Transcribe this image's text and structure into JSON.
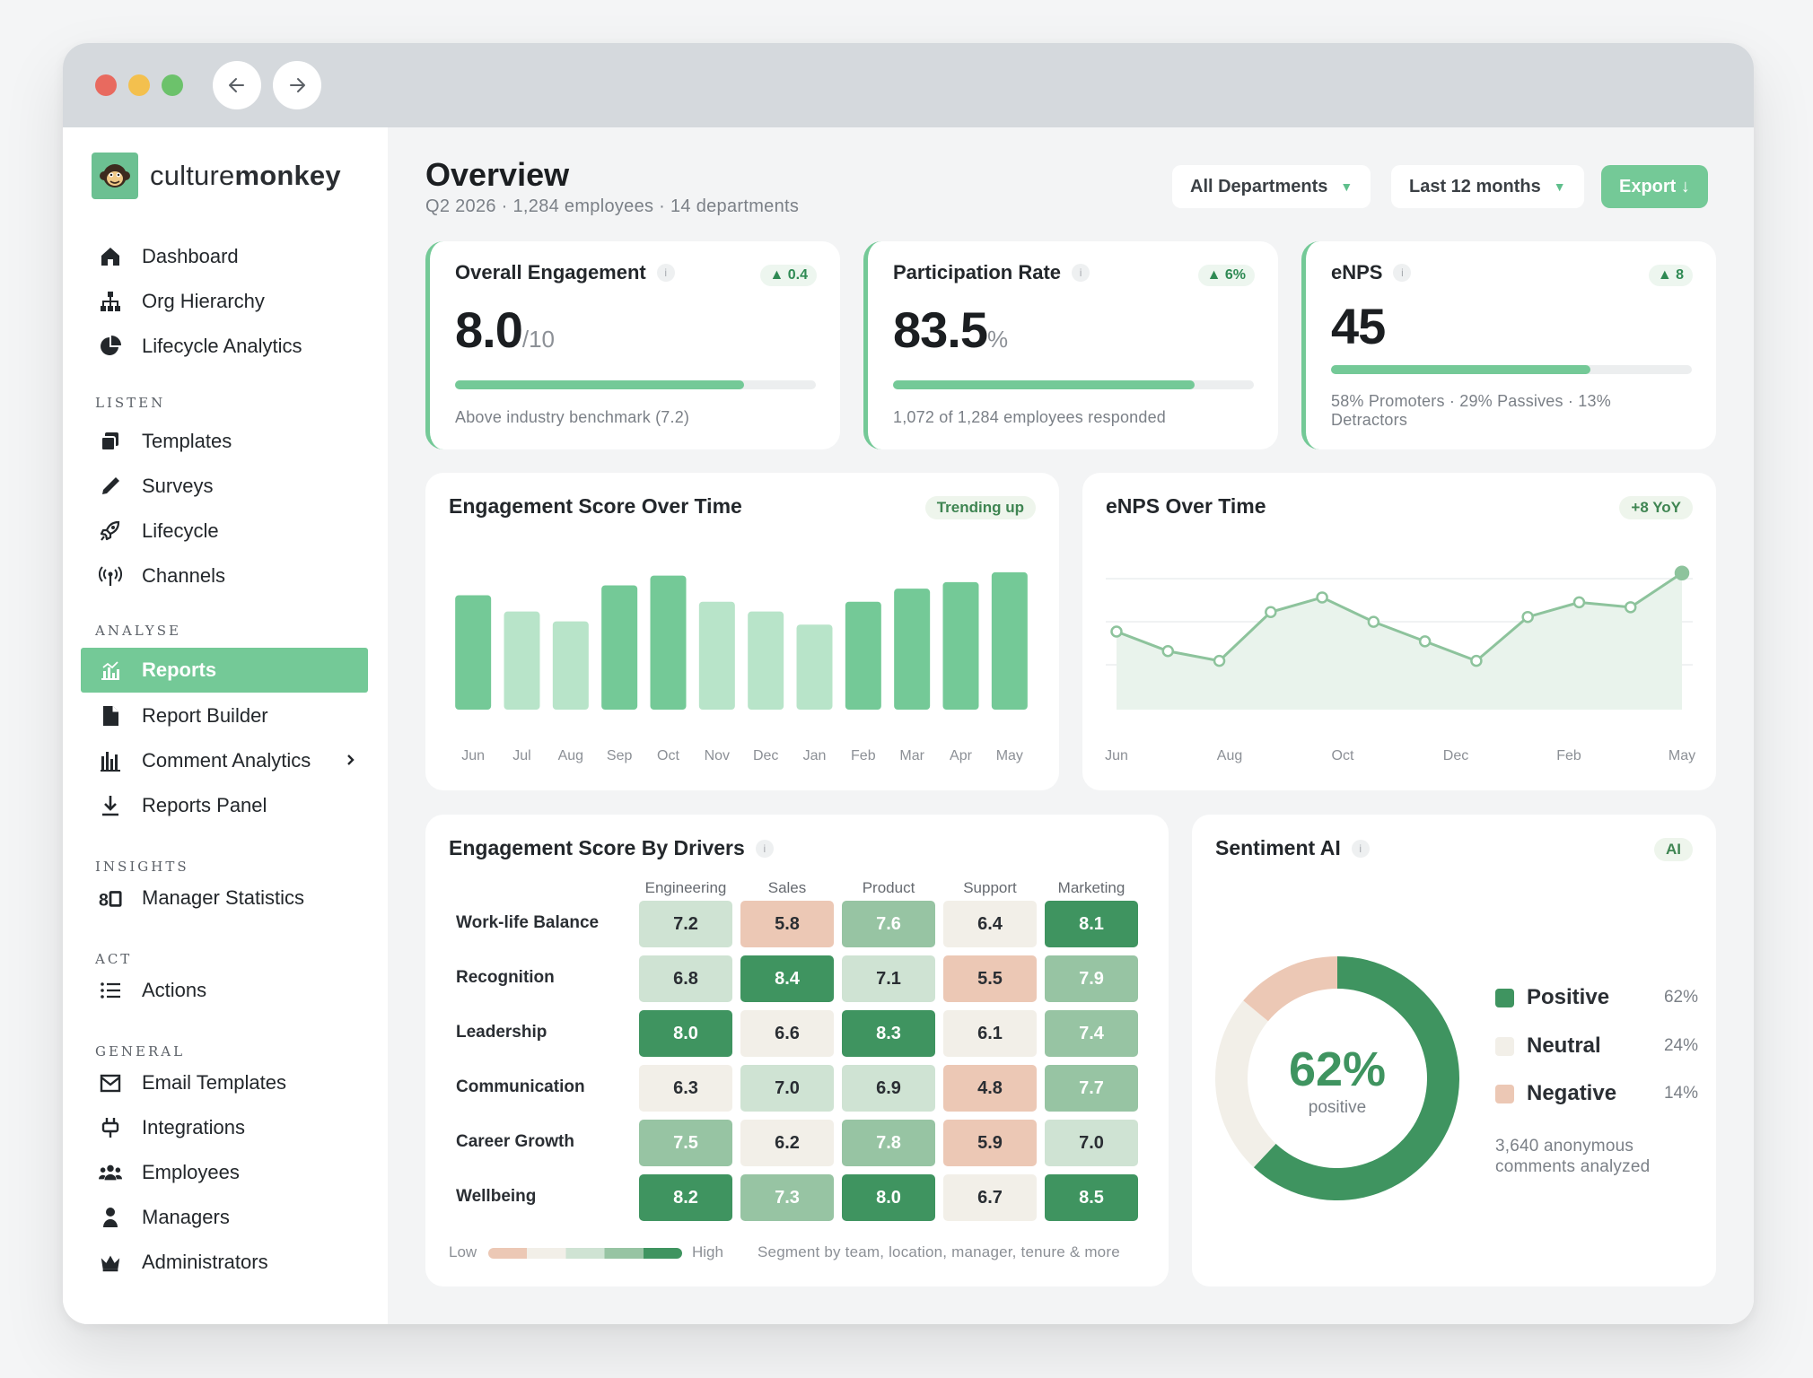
{
  "brand": {
    "name_prefix": "culture",
    "name_suffix": "monkey"
  },
  "sidebar": {
    "top_items": [
      {
        "label": "Dashboard",
        "icon": "home-icon"
      },
      {
        "label": "Org Hierarchy",
        "icon": "org-chart-icon"
      },
      {
        "label": "Lifecycle Analytics",
        "icon": "pie-chart-icon"
      }
    ],
    "sections": {
      "listen": "LISTEN",
      "analyse": "ANALYSE",
      "insights": "INSIGHTS",
      "act": "ACT",
      "general": "GENERAL"
    },
    "listen_items": [
      {
        "label": "Templates",
        "icon": "templates-icon"
      },
      {
        "label": "Surveys",
        "icon": "pen-icon"
      },
      {
        "label": "Lifecycle",
        "icon": "rocket-icon"
      },
      {
        "label": "Channels",
        "icon": "broadcast-icon"
      }
    ],
    "analyse_items": [
      {
        "label": "Reports",
        "icon": "reports-chart-icon",
        "active": true
      },
      {
        "label": "Report Builder",
        "icon": "document-icon"
      },
      {
        "label": "Comment Analytics",
        "icon": "bar-chart-icon",
        "has_submenu": true
      },
      {
        "label": "Reports Panel",
        "icon": "download-icon"
      }
    ],
    "insights_items": [
      {
        "label": "Manager Statistics",
        "icon": "statistics-icon"
      }
    ],
    "act_items": [
      {
        "label": "Actions",
        "icon": "list-icon"
      }
    ],
    "general_items": [
      {
        "label": "Email Templates",
        "icon": "mail-icon"
      },
      {
        "label": "Integrations",
        "icon": "plug-icon"
      },
      {
        "label": "Employees",
        "icon": "people-icon"
      },
      {
        "label": "Managers",
        "icon": "person-icon"
      },
      {
        "label": "Administrators",
        "icon": "crown-icon"
      }
    ]
  },
  "header": {
    "title": "Overview",
    "subtitle": "Q2 2026 · 1,284 employees · 14 departments",
    "department_filter": "All Departments",
    "period_filter": "Last 12 months",
    "export_label": "Export ↓"
  },
  "kpis": {
    "engagement": {
      "title": "Overall Engagement",
      "delta": "▲ 0.4",
      "value": "8.0",
      "unit": "/10",
      "progress": 0.8,
      "note": "Above industry benchmark (7.2)"
    },
    "participation": {
      "title": "Participation Rate",
      "delta": "▲ 6%",
      "value": "83.5",
      "unit": "%",
      "progress": 0.835,
      "note": "1,072 of 1,284 employees responded"
    },
    "enps": {
      "title": "eNPS",
      "delta": "▲ 8",
      "value": "45",
      "progress": 0.72,
      "note": "58% Promoters · 29% Passives · 13% Detractors"
    }
  },
  "engagement_chart": {
    "title": "Engagement Score Over Time",
    "badge": "Trending up"
  },
  "enps_chart": {
    "title": "eNPS Over Time",
    "badge": "+8 YoY"
  },
  "chart_data": [
    {
      "type": "bar",
      "title": "Engagement Score Over Time",
      "categories": [
        "Jun",
        "Jul",
        "Aug",
        "Sep",
        "Oct",
        "Nov",
        "Dec",
        "Jan",
        "Feb",
        "Mar",
        "Apr",
        "May"
      ],
      "values": [
        7.5,
        7.0,
        6.7,
        7.8,
        8.1,
        7.3,
        7.0,
        6.6,
        7.3,
        7.7,
        7.9,
        8.2
      ],
      "highlight": [
        true,
        false,
        false,
        true,
        true,
        false,
        false,
        false,
        true,
        true,
        true,
        true
      ],
      "ylim": [
        4,
        8.5
      ],
      "colors": {
        "high": "#74c997",
        "low": "#b8e4c9"
      }
    },
    {
      "type": "line",
      "title": "eNPS Over Time",
      "x_ticks": [
        "Jun",
        "Aug",
        "Oct",
        "Dec",
        "Feb",
        "May"
      ],
      "values": [
        36,
        32,
        30,
        40,
        43,
        38,
        34,
        30,
        39,
        42,
        41,
        48
      ],
      "ylim": [
        20,
        52
      ],
      "color": "#8dc39c"
    },
    {
      "type": "heatmap",
      "title": "Engagement Score By Drivers",
      "columns": [
        "Engineering",
        "Sales",
        "Product",
        "Support",
        "Marketing"
      ],
      "rows": [
        "Work-life Balance",
        "Recognition",
        "Leadership",
        "Communication",
        "Career Growth",
        "Wellbeing"
      ],
      "values": [
        [
          7.2,
          5.8,
          7.6,
          6.4,
          8.1
        ],
        [
          6.8,
          8.4,
          7.1,
          5.5,
          7.9
        ],
        [
          8.0,
          6.6,
          8.3,
          6.1,
          7.4
        ],
        [
          6.3,
          7.0,
          6.9,
          4.8,
          7.7
        ],
        [
          7.5,
          6.2,
          7.8,
          5.9,
          7.0
        ],
        [
          8.2,
          7.3,
          8.0,
          6.7,
          8.5
        ]
      ],
      "scale_low": "Low",
      "scale_high": "High",
      "footnote": "Segment by team, location, manager, tenure & more"
    },
    {
      "type": "pie",
      "title": "Sentiment AI",
      "slices": [
        {
          "label": "Positive",
          "value": 62,
          "display": "62%",
          "color": "#3f9460"
        },
        {
          "label": "Neutral",
          "value": 24,
          "display": "24%",
          "color": "#f2efe8"
        },
        {
          "label": "Negative",
          "value": 14,
          "display": "14%",
          "color": "#ecc8b5"
        }
      ],
      "center_value": "62%",
      "center_label": "positive"
    }
  ],
  "sentiment": {
    "title": "Sentiment AI",
    "badge": "AI",
    "note": "3,640 anonymous comments analyzed"
  }
}
